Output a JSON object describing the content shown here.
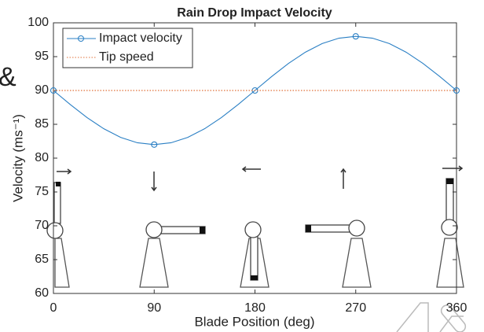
{
  "chart_data": {
    "type": "line",
    "title": "Rain Drop Impact Velocity",
    "xlabel": "Blade Position (deg)",
    "ylabel": "Velocity (ms⁻¹)",
    "side_text": "&",
    "xlim": [
      0,
      360
    ],
    "xticks": [
      0,
      90,
      180,
      270,
      360
    ],
    "ylim": [
      60,
      100
    ],
    "yticks": [
      60,
      65,
      70,
      75,
      80,
      85,
      90,
      95,
      100
    ],
    "grid": false,
    "legend": "upper left",
    "series": [
      {
        "name": "Impact velocity",
        "color": "#2a7fc4",
        "style": "solid",
        "marker": "circle",
        "markevery": 6,
        "x": [
          0,
          15,
          30,
          45,
          60,
          75,
          90,
          105,
          120,
          135,
          150,
          165,
          180,
          195,
          210,
          225,
          240,
          255,
          270,
          285,
          300,
          315,
          330,
          345,
          360
        ],
        "values": [
          90,
          87.93,
          86,
          84.34,
          83.07,
          82.27,
          82,
          82.27,
          83.07,
          84.34,
          86,
          87.93,
          90,
          92.07,
          94,
          95.66,
          96.93,
          97.73,
          98,
          97.73,
          96.93,
          95.66,
          94,
          92.07,
          90
        ]
      },
      {
        "name": "Tip speed",
        "color": "#e0703a",
        "style": "dotted",
        "marker": "none",
        "markevery": 1,
        "x": [
          0,
          360
        ],
        "values": [
          90,
          90
        ]
      }
    ]
  }
}
